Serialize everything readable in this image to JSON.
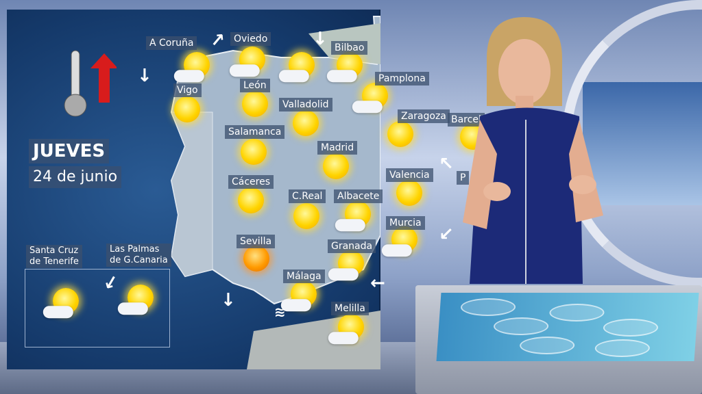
{
  "day": "JUEVES",
  "date": "24 de junio",
  "cities": [
    {
      "name": "A Coruña",
      "sky": "sun-cloud"
    },
    {
      "name": "Oviedo",
      "sky": "sun-cloud"
    },
    {
      "name": "Bilbao",
      "sky": "sun-cloud"
    },
    {
      "name": "Vigo",
      "sky": "sun"
    },
    {
      "name": "León",
      "sky": "sun"
    },
    {
      "name": "Pamplona",
      "sky": "sun-cloud"
    },
    {
      "name": "Valladolid",
      "sky": "sun"
    },
    {
      "name": "Zaragoza",
      "sky": "sun"
    },
    {
      "name": "Barcel",
      "sky": "sun"
    },
    {
      "name": "Salamanca",
      "sky": "sun"
    },
    {
      "name": "Madrid",
      "sky": "sun"
    },
    {
      "name": "Valencia",
      "sky": "sun"
    },
    {
      "name": "Cáceres",
      "sky": "sun"
    },
    {
      "name": "C.Real",
      "sky": "sun"
    },
    {
      "name": "Albacete",
      "sky": "sun-cloud"
    },
    {
      "name": "Murcia",
      "sky": "sun-cloud"
    },
    {
      "name": "Sevilla",
      "sky": "hot-sun"
    },
    {
      "name": "Granada",
      "sky": "sun-cloud"
    },
    {
      "name": "Málaga",
      "sky": "sun-cloud"
    },
    {
      "name": "Melilla",
      "sky": "sun-cloud"
    }
  ],
  "canarias": {
    "tenerife": "Santa Cruz\nde Tenerife",
    "gran_canaria": "Las Palmas\nde G.Canaria"
  },
  "palma_partial": "P",
  "colors": {
    "sea": "#1a426f",
    "land": "#9fb6cc",
    "sun": "#ffd400",
    "hot_sun": "#ff9a00",
    "trend_arrow": "#d81c1c"
  },
  "temperature_trend": "rising"
}
